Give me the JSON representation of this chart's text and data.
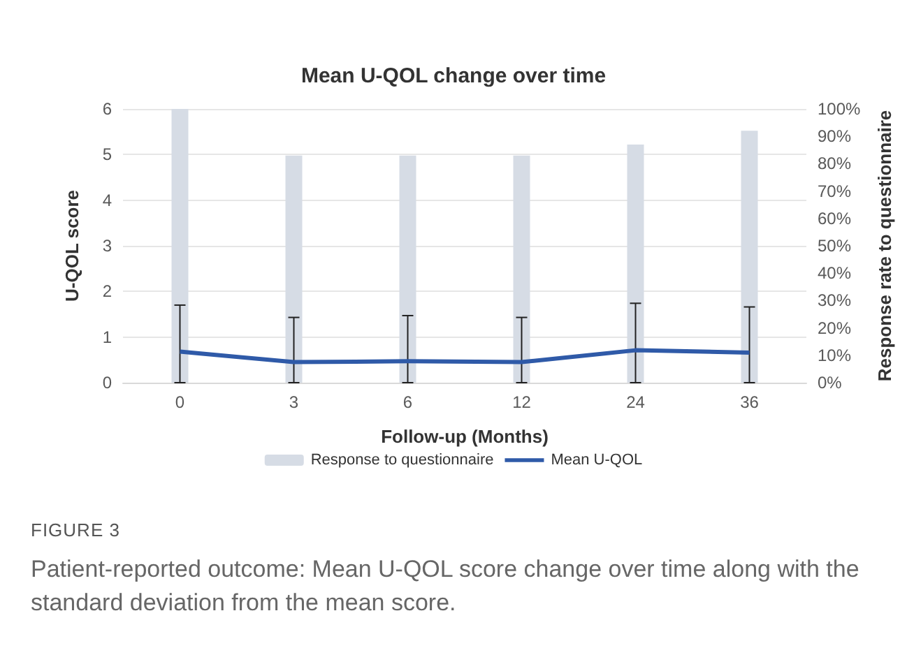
{
  "chart_data": {
    "type": "line",
    "title": "Mean U-QOL change over time",
    "xlabel": "Follow-up (Months)",
    "ylabel": "U-QOL score",
    "y2label": "Response rate to questionnaire",
    "categories": [
      "0",
      "3",
      "6",
      "12",
      "24",
      "36"
    ],
    "series": [
      {
        "name": "Response to questionnaire",
        "type": "bar",
        "axis": "y2",
        "color": "#d6dce5",
        "values": [
          100,
          83,
          83,
          83,
          87,
          92
        ]
      },
      {
        "name": "Mean U-QOL",
        "color": "#2f5aa8",
        "values": [
          0.68,
          0.45,
          0.47,
          0.45,
          0.71,
          0.66
        ],
        "errors": [
          [
            0,
            1.7
          ],
          [
            0,
            1.43
          ],
          [
            0,
            1.47
          ],
          [
            0,
            1.43
          ],
          [
            0,
            1.74
          ],
          [
            0,
            1.66
          ]
        ]
      }
    ],
    "ylim": [
      0,
      6
    ],
    "yticks": [
      0,
      1,
      2,
      3,
      4,
      5,
      6
    ],
    "y2lim": [
      0,
      100
    ],
    "y2ticks": [
      {
        "value": 0,
        "label": "0%"
      },
      {
        "value": 10,
        "label": "10%"
      },
      {
        "value": 20,
        "label": "20%"
      },
      {
        "value": 30,
        "label": "30%"
      },
      {
        "value": 40,
        "label": "40%"
      },
      {
        "value": 50,
        "label": "50%"
      },
      {
        "value": 60,
        "label": "60%"
      },
      {
        "value": 70,
        "label": "70%"
      },
      {
        "value": 80,
        "label": "80%"
      },
      {
        "value": 90,
        "label": "90%"
      },
      {
        "value": 100,
        "label": "100%"
      }
    ],
    "grid": "y",
    "legend": "bottom",
    "marker": "none",
    "line_style": "solid",
    "annotations": [
      "FIGURE 3",
      "Patient-reported outcome: Mean U-QOL score change over time along with the standard deviation from the mean score."
    ]
  }
}
